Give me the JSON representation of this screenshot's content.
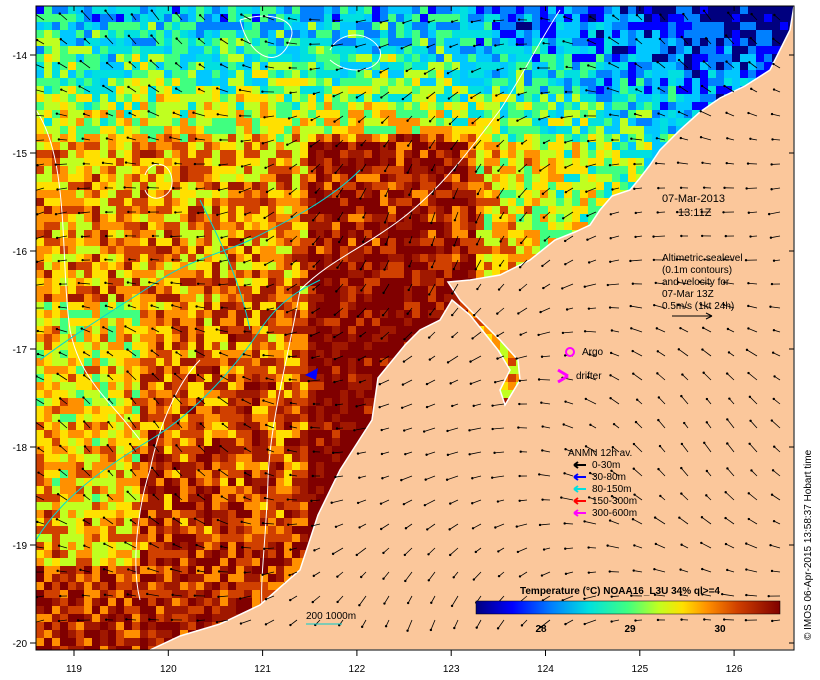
{
  "map": {
    "date_label": "07-Mar-2013",
    "time_label": "13:11Z",
    "altimetry_note": [
      "Altimetric sealevel",
      "(0.1m contours)",
      "and velocity for",
      "07-Mar 13Z",
      "0.5m/s (1kt 24h)"
    ],
    "argo_label": "Argo",
    "drifter_label": "drifter",
    "anmn_title": "ANMN 12h av.",
    "anmn_legend": [
      {
        "label": "0-30m",
        "color": "#000000"
      },
      {
        "label": "30-80m",
        "color": "#0000ff"
      },
      {
        "label": "80-150m",
        "color": "#00e0e0"
      },
      {
        "label": "150-300m",
        "color": "#ff0000"
      },
      {
        "label": "300-600m",
        "color": "#ff00ff"
      }
    ],
    "isobath_label": "200  1000m",
    "colorbar_title": "Temperature (°C) NOAA16_L3U 34% ql>=4",
    "colorbar_ticks": [
      "28",
      "29",
      "30"
    ],
    "x_ticks": [
      "119",
      "120",
      "121",
      "122",
      "123",
      "124",
      "125",
      "126"
    ],
    "y_ticks": [
      "-14",
      "-15",
      "-16",
      "-17",
      "-18",
      "-19",
      "-20"
    ],
    "credit": "© IMOS 06-Apr-2015 13:58:37 Hobart time",
    "colors": {
      "land": "#fbc79b",
      "argo": "#ff00ff",
      "drifter": "#ff00ff",
      "sealevel_contour": "#ffffff",
      "isobath": "#00cccc"
    }
  }
}
